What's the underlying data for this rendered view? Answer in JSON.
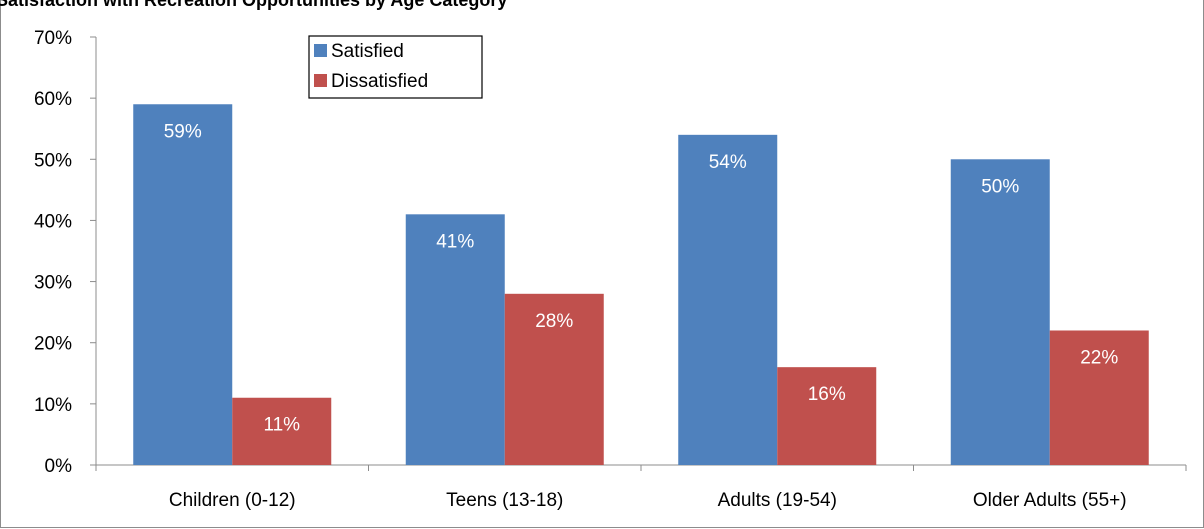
{
  "chart_data": {
    "type": "bar",
    "title": "Satisfaction with Recreation Opportunities by Age Category",
    "categories": [
      "Children (0-12)",
      "Teens (13-18)",
      "Adults (19-54)",
      "Older Adults (55+)"
    ],
    "series": [
      {
        "name": "Satisfied",
        "values": [
          59,
          41,
          54,
          50
        ],
        "labels": [
          "59%",
          "41%",
          "54%",
          "50%"
        ],
        "color": "#4f81bd"
      },
      {
        "name": "Dissatisfied",
        "values": [
          11,
          28,
          16,
          22
        ],
        "labels": [
          "11%",
          "28%",
          "16%",
          "22%"
        ],
        "color": "#c0504d"
      }
    ],
    "ylim": [
      0,
      70
    ],
    "yticks": [
      "0%",
      "10%",
      "20%",
      "30%",
      "40%",
      "50%",
      "60%",
      "70%"
    ],
    "xlabel": "",
    "ylabel": "",
    "grid": false,
    "legend": "top-center"
  }
}
